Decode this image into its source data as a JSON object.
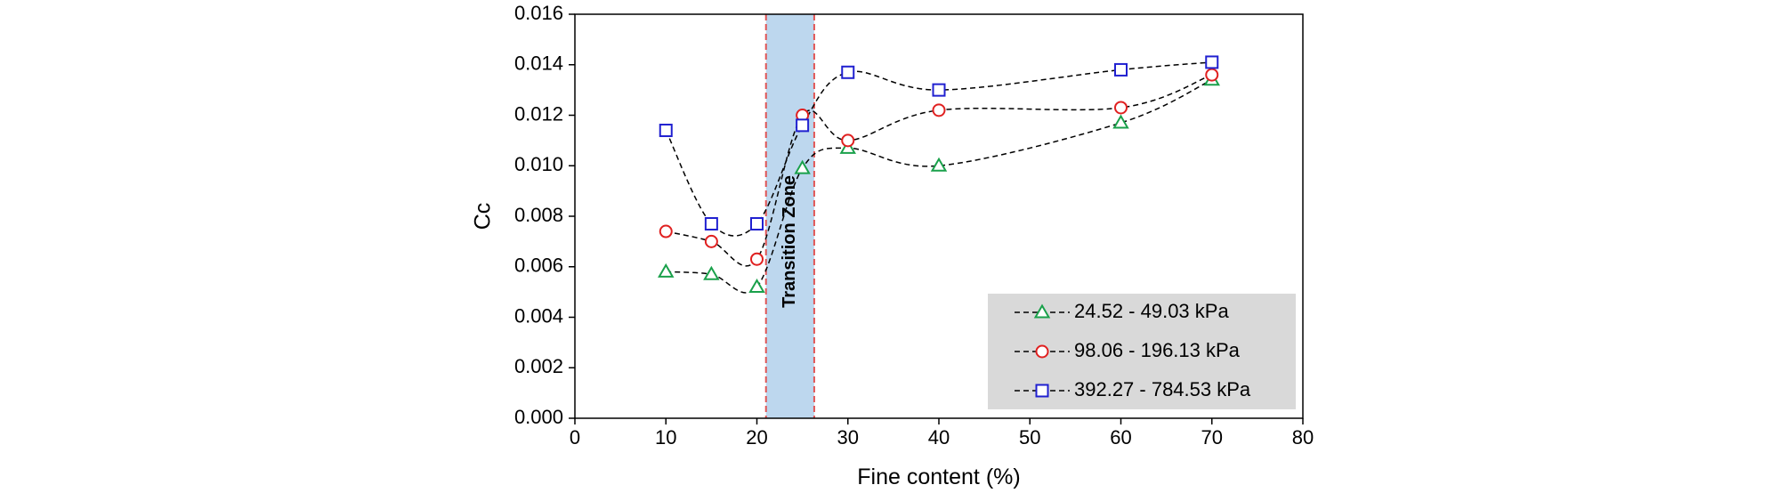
{
  "chart_data": {
    "type": "scatter",
    "title": "",
    "xlabel": "Fine content (%)",
    "ylabel": "Cc",
    "xlim": [
      0,
      80
    ],
    "ylim": [
      0,
      0.016
    ],
    "x_ticks": [
      0,
      10,
      20,
      30,
      40,
      50,
      60,
      70,
      80
    ],
    "x_tick_labels": [
      "0",
      "10",
      "20",
      "30",
      "40",
      "50",
      "60",
      "70",
      "80"
    ],
    "y_ticks": [
      0,
      0.002,
      0.004,
      0.006,
      0.008,
      0.01,
      0.012,
      0.014,
      0.016
    ],
    "y_tick_labels": [
      "0.000",
      "0.002",
      "0.004",
      "0.006",
      "0.008",
      "0.010",
      "0.012",
      "0.014",
      "0.016"
    ],
    "grid": false,
    "legend_position": "bottom-right",
    "transition_zone": {
      "label": "Transition  Zone",
      "x_range": [
        21,
        26.3
      ],
      "fill_color": "#bdd7ee",
      "border_color": "#e05555"
    },
    "series": [
      {
        "name": "24.52 - 49.03 kPa",
        "marker": "triangle",
        "color": "#1aa14b",
        "x": [
          10,
          15,
          20,
          25,
          30,
          40,
          60,
          70
        ],
        "values": [
          0.0058,
          0.0057,
          0.0052,
          0.0099,
          0.0107,
          0.01,
          0.0117,
          0.0134
        ]
      },
      {
        "name": "98.06 - 196.13 kPa",
        "marker": "circle",
        "color": "#e02020",
        "x": [
          10,
          15,
          20,
          25,
          30,
          40,
          60,
          70
        ],
        "values": [
          0.0074,
          0.007,
          0.0063,
          0.012,
          0.011,
          0.0122,
          0.0123,
          0.0136
        ]
      },
      {
        "name": "392.27 - 784.53 kPa",
        "marker": "square",
        "color": "#2020d0",
        "x": [
          10,
          15,
          20,
          25,
          30,
          40,
          60,
          70
        ],
        "values": [
          0.0114,
          0.0077,
          0.0077,
          0.0116,
          0.0137,
          0.013,
          0.0138,
          0.0141
        ]
      }
    ]
  }
}
